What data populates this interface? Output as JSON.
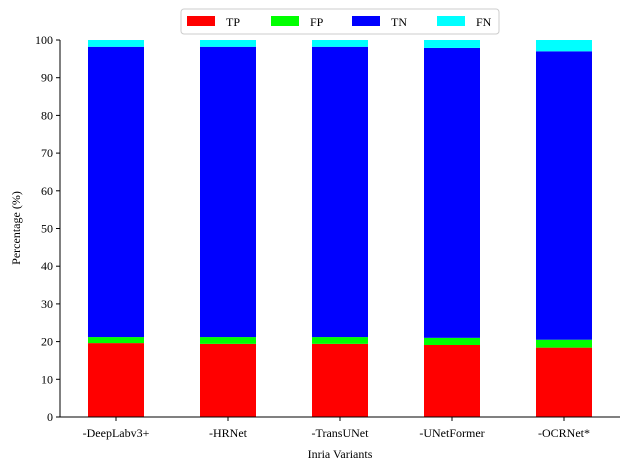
{
  "chart_data": {
    "type": "bar",
    "stacked": true,
    "title": "",
    "xlabel": "Inria Variants",
    "ylabel": "Percentage (%)",
    "ylim": [
      0,
      100
    ],
    "yticks": [
      0,
      10,
      20,
      30,
      40,
      50,
      60,
      70,
      80,
      90,
      100
    ],
    "categories": [
      "-DeepLabv3+",
      "-HRNet",
      "-TransUNet",
      "-UNetFormer",
      "-OCRNet*"
    ],
    "series": [
      {
        "name": "TP",
        "color": "#ff0000",
        "values": [
          19.6,
          19.4,
          19.4,
          19.1,
          18.4
        ]
      },
      {
        "name": "FP",
        "color": "#00ff00",
        "values": [
          1.6,
          1.8,
          1.8,
          1.9,
          2.1
        ]
      },
      {
        "name": "TN",
        "color": "#0000ff",
        "values": [
          77.0,
          77.0,
          77.0,
          76.9,
          76.5
        ]
      },
      {
        "name": "FN",
        "color": "#00ffff",
        "values": [
          1.8,
          1.8,
          1.8,
          2.1,
          3.0
        ]
      }
    ],
    "legend_position": "top-center",
    "grid": false
  }
}
